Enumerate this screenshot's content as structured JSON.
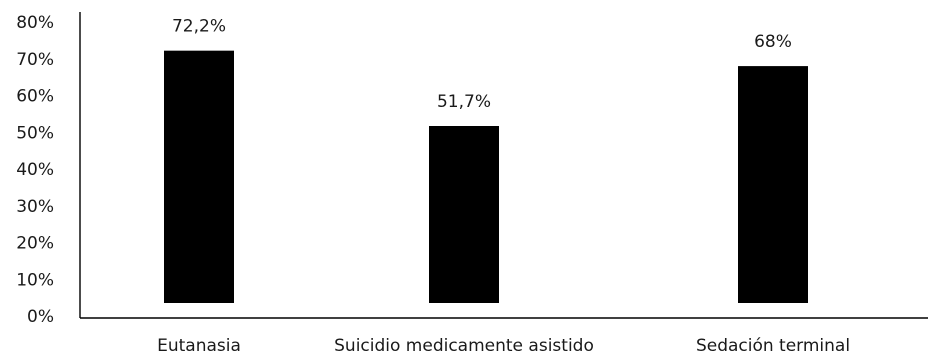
{
  "chart_data": {
    "type": "bar",
    "title": "",
    "xlabel": "",
    "ylabel": "",
    "categories": [
      "Eutanasia",
      "Suicidio medicamente asistido",
      "Sedación terminal"
    ],
    "values": [
      72.2,
      51.7,
      68
    ],
    "data_labels": [
      "72,2%",
      "51,7%",
      "68%"
    ],
    "y_ticks": [
      0,
      10,
      20,
      30,
      40,
      50,
      60,
      70,
      80
    ],
    "y_tick_labels": [
      "0%",
      "10%",
      "20%",
      "30%",
      "40%",
      "50%",
      "60%",
      "70%",
      "80%"
    ],
    "ylim": [
      0,
      80
    ],
    "grid": false,
    "legend": "none",
    "bar_color": "#000000"
  }
}
